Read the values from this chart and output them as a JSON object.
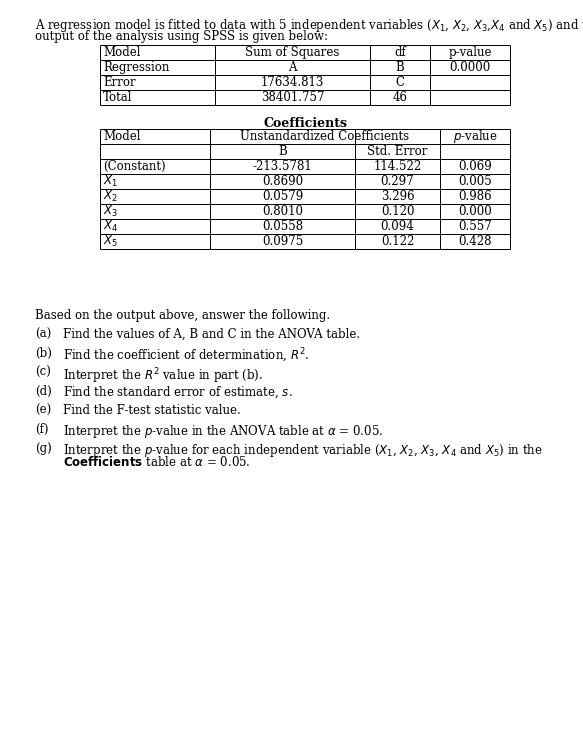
{
  "bg_color": "#ffffff",
  "text_color": "#000000",
  "font_size": 8.5,
  "table_font_size": 8.5,
  "anova_headers": [
    "Model",
    "Sum of Squares",
    "df",
    "p-value"
  ],
  "anova_rows": [
    [
      "Regression",
      "A",
      "B",
      "0.0000"
    ],
    [
      "Error",
      "17634.813",
      "C",
      ""
    ],
    [
      "Total",
      "38401.757",
      "46",
      ""
    ]
  ],
  "coeff_rows": [
    [
      "(Constant)",
      "-213.5781",
      "114.522",
      "0.069"
    ],
    [
      "X1",
      "0.8690",
      "0.297",
      "0.005"
    ],
    [
      "X2",
      "0.0579",
      "3.296",
      "0.986"
    ],
    [
      "X3",
      "0.8010",
      "0.120",
      "0.000"
    ],
    [
      "X4",
      "0.0558",
      "0.094",
      "0.557"
    ],
    [
      "X5",
      "0.0975",
      "0.122",
      "0.428"
    ]
  ]
}
